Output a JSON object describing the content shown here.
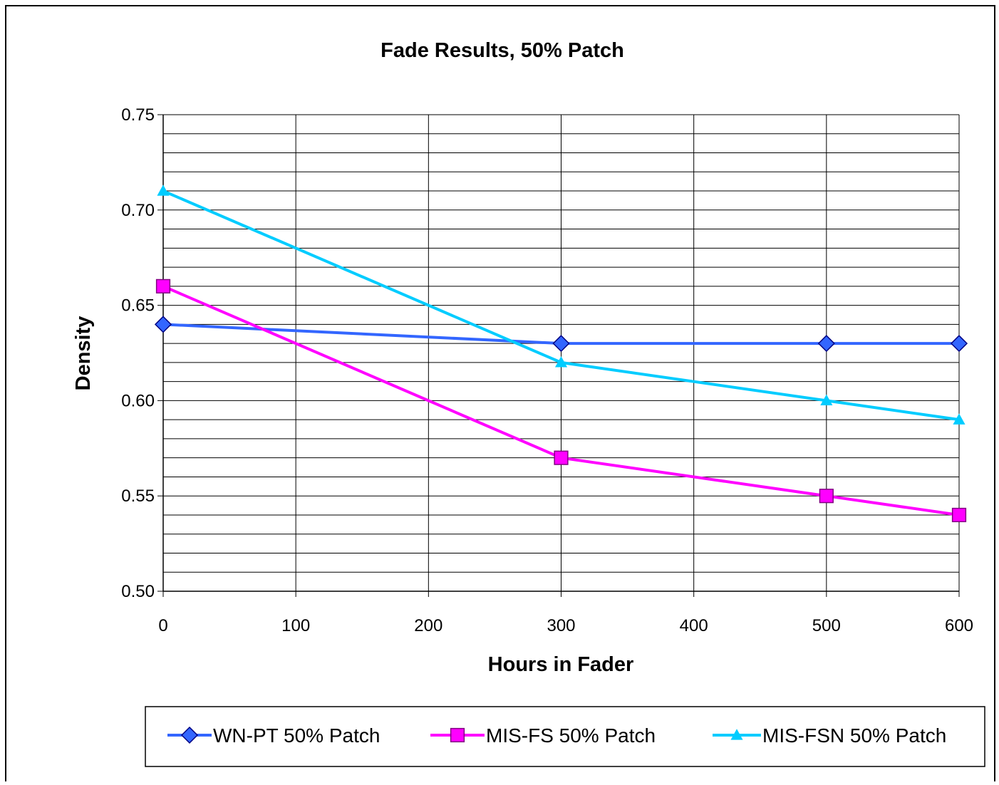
{
  "chart_data": {
    "type": "line",
    "title": "Fade Results, 50% Patch",
    "xlabel": "Hours in Fader",
    "ylabel": "Density",
    "x": [
      0,
      300,
      500,
      600
    ],
    "xlim": [
      0,
      600
    ],
    "ylim": [
      0.5,
      0.75
    ],
    "x_ticks": [
      "0",
      "100",
      "200",
      "300",
      "400",
      "500",
      "600"
    ],
    "y_ticks": [
      "0.50",
      "0.55",
      "0.60",
      "0.65",
      "0.70",
      "0.75"
    ],
    "grid": true,
    "legend_position": "bottom",
    "series": [
      {
        "name": "WN-PT 50% Patch",
        "values": [
          0.64,
          0.63,
          0.63,
          0.63
        ],
        "color": "#3366ff",
        "marker": "diamond"
      },
      {
        "name": "MIS-FS 50% Patch",
        "values": [
          0.66,
          0.57,
          0.55,
          0.54
        ],
        "color": "#ff00ff",
        "marker": "square"
      },
      {
        "name": "MIS-FSN 50% Patch",
        "values": [
          0.71,
          0.62,
          0.6,
          0.59
        ],
        "color": "#00ccff",
        "marker": "triangle"
      }
    ]
  }
}
